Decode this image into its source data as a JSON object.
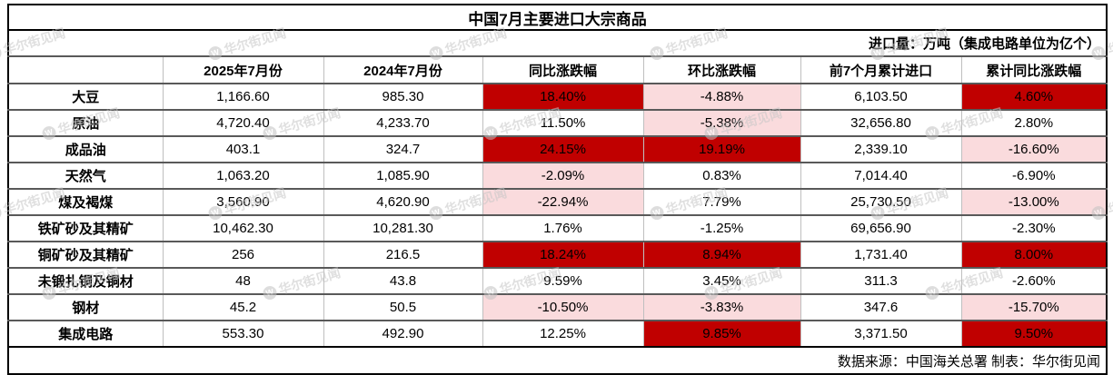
{
  "title": "中国7月主要进口大宗商品",
  "subtitle": "进口量：万吨（集成电路单位为亿个）",
  "footer": "数据来源：中国海关总署 制表：华尔街见闻",
  "watermark": {
    "text": "华尔街见闻",
    "icon_letter": "W"
  },
  "colors": {
    "highlight_strong": "#C00000",
    "highlight_light": "#FADBDD",
    "grid_horizontal": "#595959",
    "grid_vertical": "#BFBFBF",
    "outer_border": "#000000"
  },
  "table": {
    "columns": [
      "",
      "2025年7月份",
      "2024年7月份",
      "同比涨跌幅",
      "环比涨跌幅",
      "前7个月累计进口",
      "累计同比涨跌幅"
    ],
    "rows": [
      {
        "name": "大豆",
        "values": [
          "1,166.60",
          "985.30",
          "18.40%",
          "-4.88%",
          "6,103.50",
          "4.60%"
        ],
        "bg": [
          "none",
          "none",
          "red",
          "pink",
          "none",
          "red"
        ]
      },
      {
        "name": "原油",
        "values": [
          "4,720.40",
          "4,233.70",
          "11.50%",
          "-5.38%",
          "32,656.80",
          "2.80%"
        ],
        "bg": [
          "none",
          "none",
          "none",
          "pink",
          "none",
          "none"
        ]
      },
      {
        "name": "成品油",
        "values": [
          "403.1",
          "324.7",
          "24.15%",
          "19.19%",
          "2,339.10",
          "-16.60%"
        ],
        "bg": [
          "none",
          "none",
          "red",
          "red",
          "none",
          "pink"
        ]
      },
      {
        "name": "天然气",
        "values": [
          "1,063.20",
          "1,085.90",
          "-2.09%",
          "0.83%",
          "7,014.40",
          "-6.90%"
        ],
        "bg": [
          "none",
          "none",
          "pink",
          "none",
          "none",
          "none"
        ]
      },
      {
        "name": "煤及褐煤",
        "values": [
          "3,560.90",
          "4,620.90",
          "-22.94%",
          "7.79%",
          "25,730.50",
          "-13.00%"
        ],
        "bg": [
          "none",
          "none",
          "pink",
          "none",
          "none",
          "pink"
        ]
      },
      {
        "name": "铁矿砂及其精矿",
        "values": [
          "10,462.30",
          "10,281.30",
          "1.76%",
          "-1.25%",
          "69,656.90",
          "-2.30%"
        ],
        "bg": [
          "none",
          "none",
          "none",
          "none",
          "none",
          "none"
        ]
      },
      {
        "name": "铜矿砂及其精矿",
        "values": [
          "256",
          "216.5",
          "18.24%",
          "8.94%",
          "1,731.40",
          "8.00%"
        ],
        "bg": [
          "none",
          "none",
          "red",
          "red",
          "none",
          "red"
        ]
      },
      {
        "name": "未锻扎铜及铜材",
        "values": [
          "48",
          "43.8",
          "9.59%",
          "3.45%",
          "311.3",
          "-2.60%"
        ],
        "bg": [
          "none",
          "none",
          "none",
          "none",
          "none",
          "none"
        ]
      },
      {
        "name": "钢材",
        "values": [
          "45.2",
          "50.5",
          "-10.50%",
          "-3.83%",
          "347.6",
          "-15.70%"
        ],
        "bg": [
          "none",
          "none",
          "pink",
          "pink",
          "none",
          "pink"
        ]
      },
      {
        "name": "集成电路",
        "values": [
          "553.30",
          "492.90",
          "12.25%",
          "9.85%",
          "3,371.50",
          "9.50%"
        ],
        "bg": [
          "none",
          "none",
          "none",
          "red",
          "none",
          "red"
        ]
      }
    ]
  }
}
